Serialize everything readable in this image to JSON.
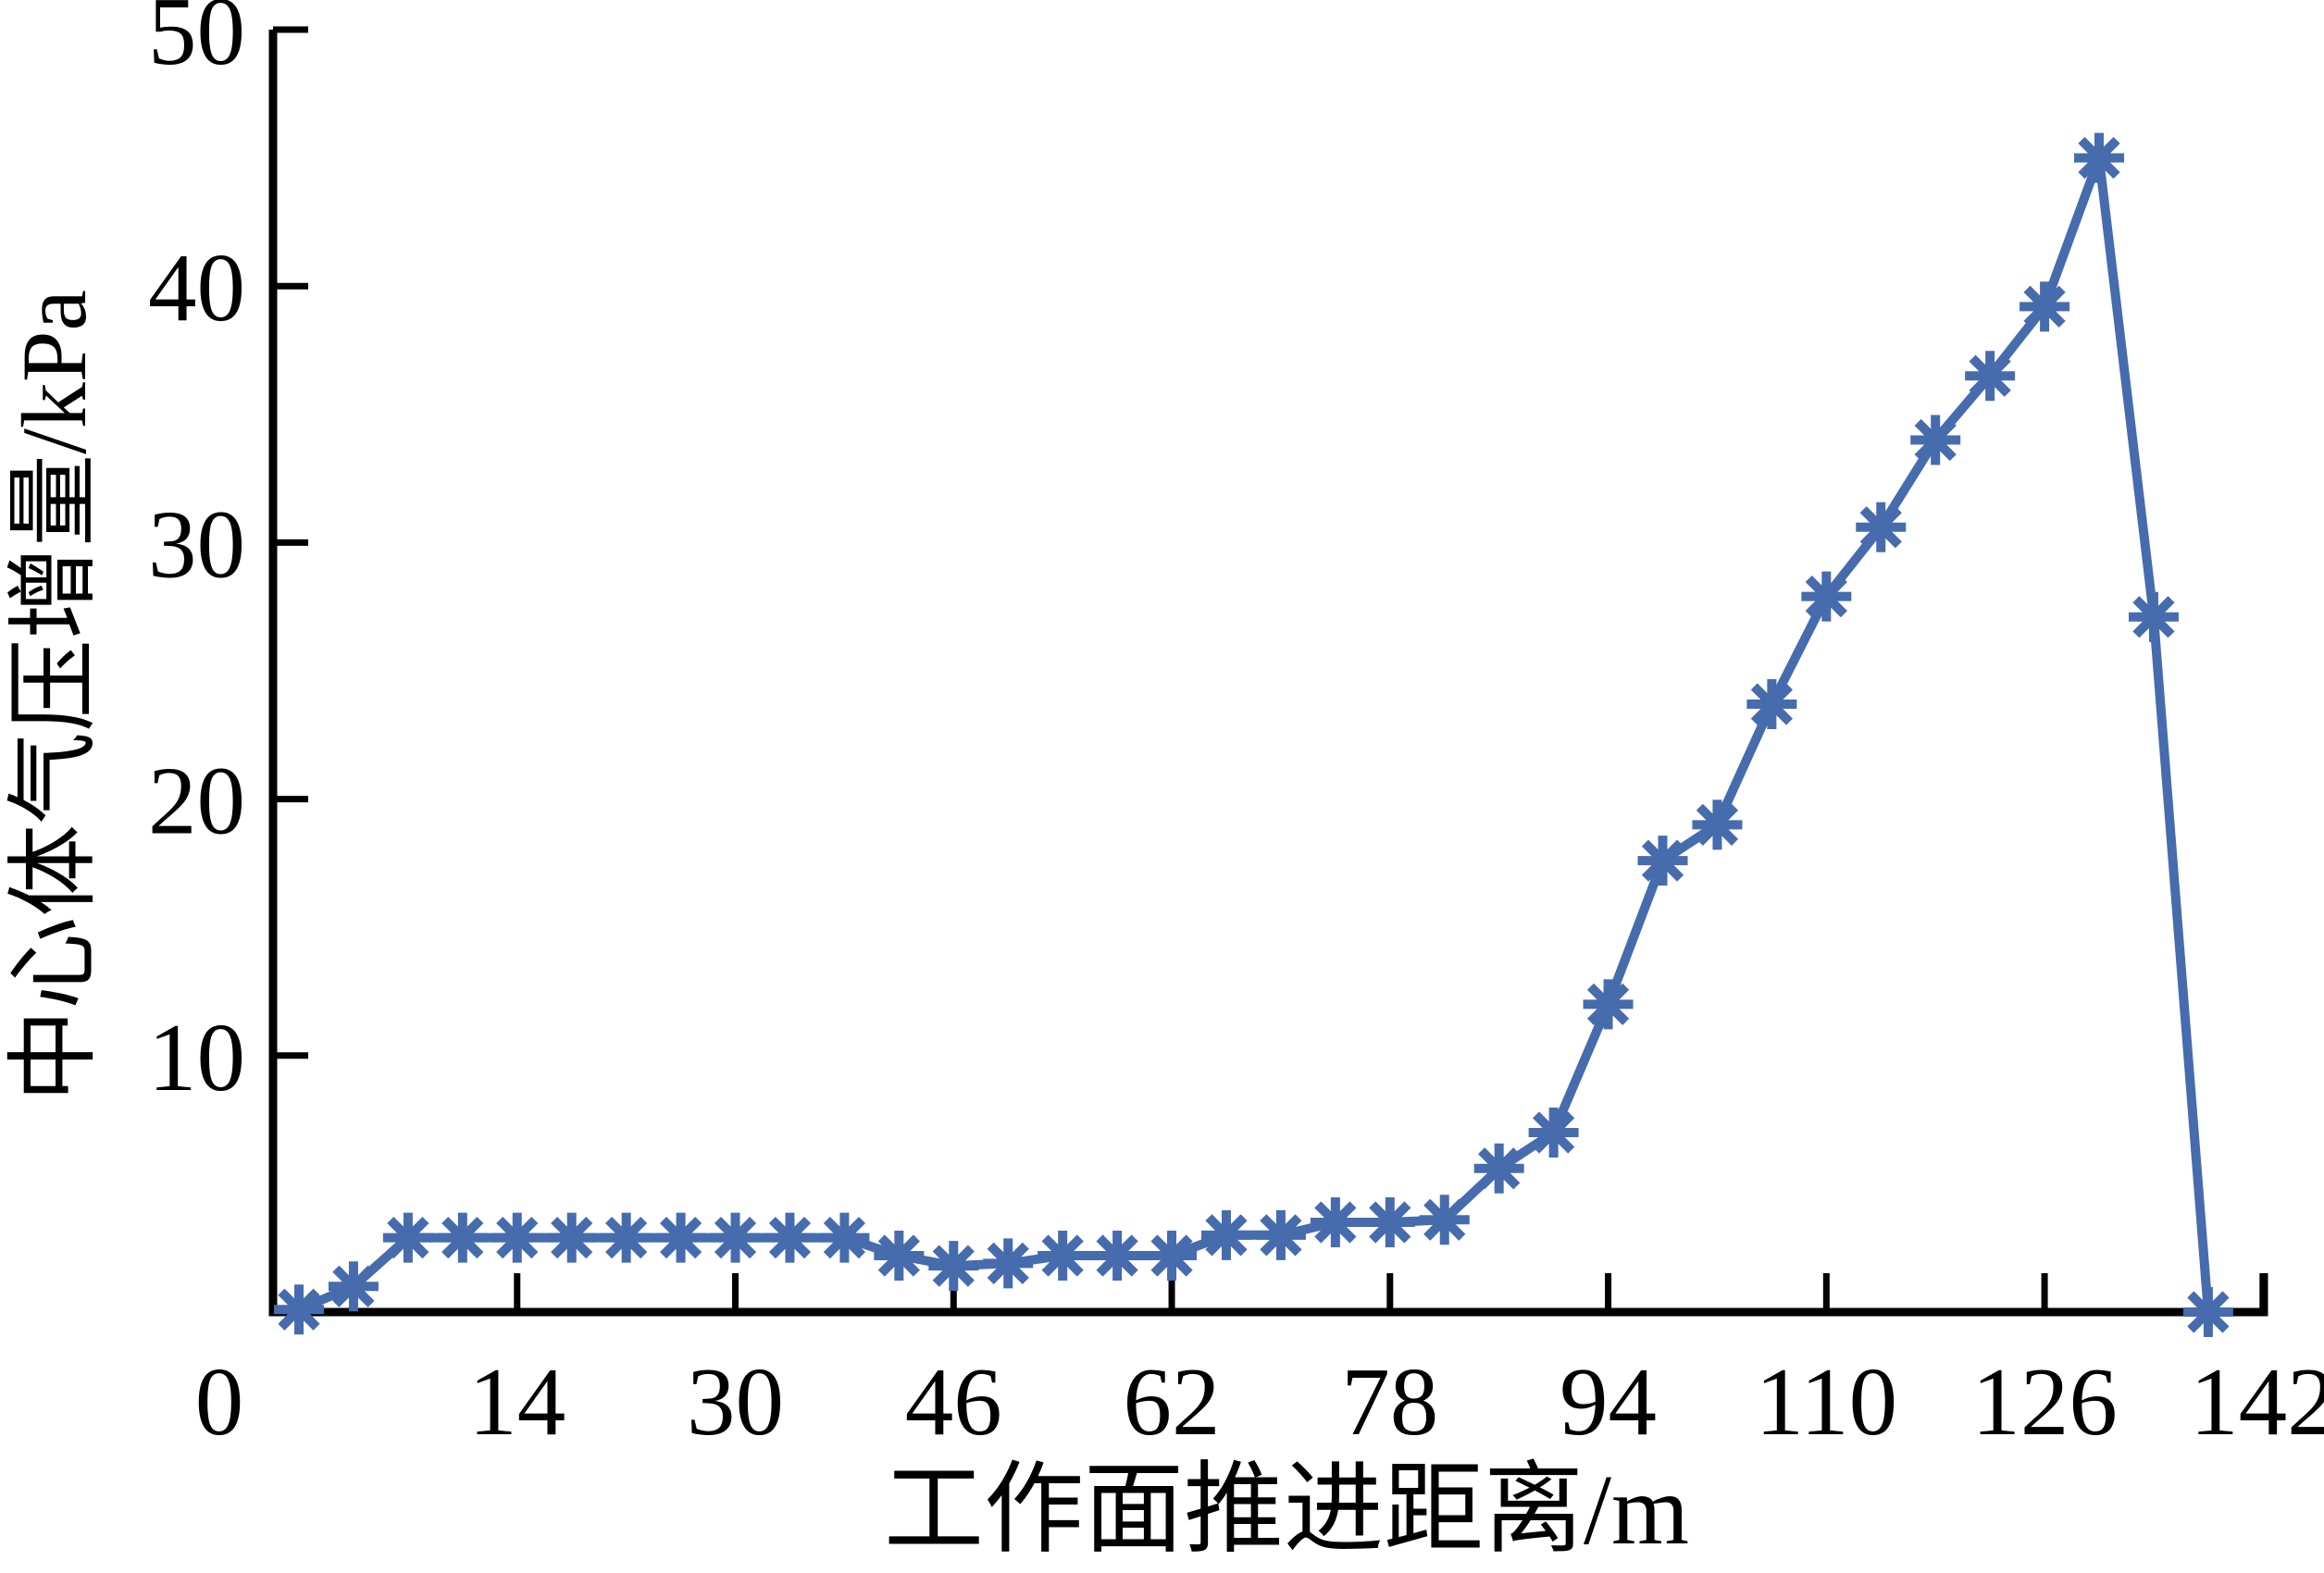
{
  "chart_data": {
    "type": "line",
    "title": "",
    "xlabel": "工作面推进距离/m",
    "ylabel": "中心体气压增量/kPa",
    "x": [
      0,
      2,
      6,
      10,
      14,
      18,
      22,
      26,
      30,
      34,
      38,
      42,
      46,
      50,
      54,
      58,
      62,
      66,
      70,
      74,
      78,
      82,
      86,
      90,
      94,
      98,
      102,
      106,
      110,
      114,
      118,
      122,
      126,
      130,
      134,
      138
    ],
    "series": [
      {
        "name": "中心体气压增量",
        "values": [
          0.1,
          1.0,
          2.9,
          2.9,
          2.9,
          2.9,
          2.9,
          2.9,
          2.9,
          2.9,
          2.9,
          2.2,
          1.8,
          1.9,
          2.2,
          2.2,
          2.2,
          3.0,
          3.0,
          3.5,
          3.5,
          3.6,
          5.6,
          7.0,
          12.0,
          17.6,
          19.0,
          23.7,
          27.9,
          30.6,
          34.0,
          36.5,
          39.2,
          45.0,
          27.1,
          0.0
        ]
      }
    ],
    "x_tick_labels": [
      "0",
      "14",
      "30",
      "46",
      "62",
      "78",
      "94",
      "110",
      "126",
      "142"
    ],
    "x_tick_label_every_n_points": 4,
    "y_ticks": [
      10,
      20,
      30,
      40,
      50
    ],
    "ylim": [
      0,
      50
    ],
    "xlim_labels": [
      0,
      142
    ],
    "grid": false,
    "legend_position": "none",
    "marker": "asterisk-8-arm",
    "line_color": "#466CAD",
    "axis_color": "#000000",
    "background_color": "#FFFFFF"
  }
}
